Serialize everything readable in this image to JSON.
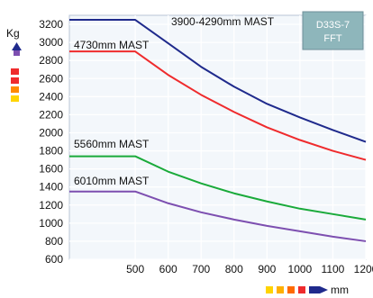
{
  "chart_data": {
    "type": "line",
    "title": "",
    "xlabel": "mm",
    "ylabel": "Kg",
    "xlim": [
      300,
      1200
    ],
    "ylim": [
      600,
      3300
    ],
    "x_ticks": [
      500,
      600,
      700,
      800,
      900,
      1000,
      1100,
      1200
    ],
    "y_ticks": [
      600,
      800,
      1000,
      1200,
      1400,
      1600,
      1800,
      2000,
      2200,
      2400,
      2600,
      2800,
      3000,
      3200
    ],
    "grid": true,
    "model_box": {
      "line1": "D33S-7",
      "line2": "FFT",
      "placement": "top-right"
    },
    "series": [
      {
        "name": "3900-4290mm MAST",
        "color": "#1f2a8c",
        "x": [
          300,
          500,
          600,
          700,
          800,
          900,
          1000,
          1100,
          1200
        ],
        "y": [
          3250,
          3250,
          2990,
          2730,
          2510,
          2320,
          2170,
          2030,
          1900
        ]
      },
      {
        "name": "4730mm MAST",
        "color": "#ef2b2d",
        "x": [
          300,
          500,
          600,
          700,
          800,
          900,
          1000,
          1100,
          1200
        ],
        "y": [
          2900,
          2900,
          2640,
          2420,
          2230,
          2060,
          1920,
          1800,
          1700
        ]
      },
      {
        "name": "5560mm MAST",
        "color": "#1aaa3a",
        "x": [
          300,
          500,
          600,
          700,
          800,
          900,
          1000,
          1100,
          1200
        ],
        "y": [
          1740,
          1740,
          1570,
          1440,
          1330,
          1240,
          1160,
          1100,
          1040
        ]
      },
      {
        "name": "6010mm MAST",
        "color": "#7d4fb0",
        "x": [
          300,
          500,
          600,
          700,
          800,
          900,
          1000,
          1100,
          1200
        ],
        "y": [
          1350,
          1350,
          1220,
          1120,
          1040,
          970,
          910,
          850,
          800
        ]
      }
    ],
    "decorations": {
      "y_arrow_colors": [
        "#1f2a8c",
        "#7d4fb0",
        "#ef2b2d",
        "#ff8a00",
        "#ffd400"
      ],
      "x_arrow_colors": [
        "#ffd400",
        "#ffb000",
        "#ff6a00",
        "#ef2b2d",
        "#7d4fb0",
        "#1f2a8c"
      ]
    }
  }
}
